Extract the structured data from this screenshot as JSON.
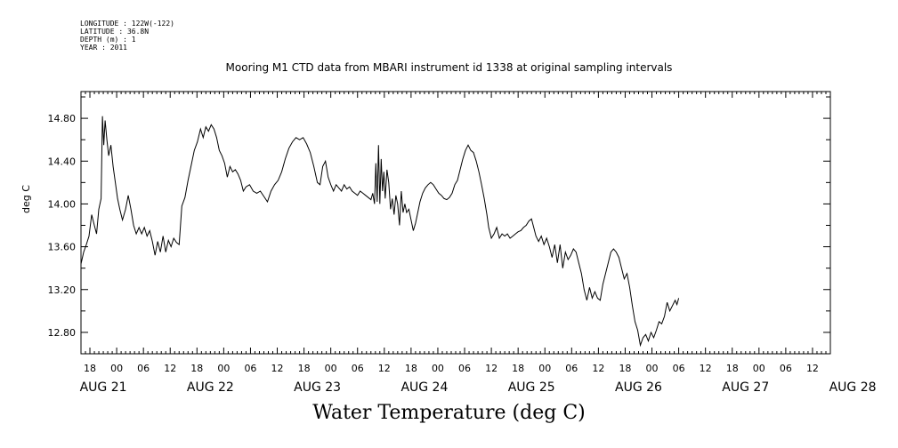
{
  "header": {
    "longitude": "LONGITUDE : 122W(-122)",
    "latitude": "LATITUDE : 36.8N",
    "depth": "DEPTH (m) : 1",
    "year": "YEAR : 2011"
  },
  "chart_data": {
    "type": "line",
    "title": "Mooring M1 CTD data from MBARI instrument id 1338 at original sampling intervals",
    "ylabel": "deg C",
    "xlabel": "Water Temperature (deg C)",
    "ylim": [
      12.6,
      15.05
    ],
    "xlim_hours": [
      -8,
      160
    ],
    "y_ticks": [
      12.8,
      13.2,
      13.6,
      14.0,
      14.4,
      14.8
    ],
    "y_tick_labels": [
      "12.80",
      "13.20",
      "13.60",
      "14.00",
      "14.40",
      "14.80"
    ],
    "x_hour_labels": [
      {
        "h": -6,
        "label": "18"
      },
      {
        "h": 0,
        "label": "00"
      },
      {
        "h": 6,
        "label": "06"
      },
      {
        "h": 12,
        "label": "12"
      },
      {
        "h": 18,
        "label": "18"
      },
      {
        "h": 24,
        "label": "00"
      },
      {
        "h": 30,
        "label": "06"
      },
      {
        "h": 36,
        "label": "12"
      },
      {
        "h": 42,
        "label": "18"
      },
      {
        "h": 48,
        "label": "00"
      },
      {
        "h": 54,
        "label": "06"
      },
      {
        "h": 60,
        "label": "12"
      },
      {
        "h": 66,
        "label": "18"
      },
      {
        "h": 72,
        "label": "00"
      },
      {
        "h": 78,
        "label": "06"
      },
      {
        "h": 84,
        "label": "12"
      },
      {
        "h": 90,
        "label": "18"
      },
      {
        "h": 96,
        "label": "00"
      },
      {
        "h": 102,
        "label": "06"
      },
      {
        "h": 108,
        "label": "12"
      },
      {
        "h": 114,
        "label": "18"
      },
      {
        "h": 120,
        "label": "00"
      },
      {
        "h": 126,
        "label": "06"
      },
      {
        "h": 132,
        "label": "12"
      },
      {
        "h": 138,
        "label": "18"
      },
      {
        "h": 144,
        "label": "00"
      },
      {
        "h": 150,
        "label": "06"
      },
      {
        "h": 156,
        "label": "12"
      }
    ],
    "x_day_labels": [
      {
        "h": -3,
        "label": "AUG 21"
      },
      {
        "h": 21,
        "label": "AUG 22"
      },
      {
        "h": 45,
        "label": "AUG 23"
      },
      {
        "h": 69,
        "label": "AUG 24"
      },
      {
        "h": 93,
        "label": "AUG 25"
      },
      {
        "h": 117,
        "label": "AUG 26"
      },
      {
        "h": 141,
        "label": "AUG 27"
      },
      {
        "h": 165,
        "label": "AUG 28"
      }
    ],
    "series": [
      {
        "points": [
          [
            -8,
            13.44
          ],
          [
            -7.4,
            13.55
          ],
          [
            -6.8,
            13.62
          ],
          [
            -6.2,
            13.7
          ],
          [
            -5.6,
            13.9
          ],
          [
            -5,
            13.8
          ],
          [
            -4.5,
            13.72
          ],
          [
            -4,
            13.95
          ],
          [
            -3.5,
            14.05
          ],
          [
            -3.2,
            14.82
          ],
          [
            -2.9,
            14.55
          ],
          [
            -2.6,
            14.78
          ],
          [
            -2.2,
            14.6
          ],
          [
            -1.8,
            14.45
          ],
          [
            -1.3,
            14.55
          ],
          [
            -0.8,
            14.35
          ],
          [
            -0.3,
            14.2
          ],
          [
            0.2,
            14.05
          ],
          [
            0.7,
            13.95
          ],
          [
            1.3,
            13.85
          ],
          [
            2,
            13.95
          ],
          [
            2.6,
            14.08
          ],
          [
            3.2,
            13.95
          ],
          [
            3.8,
            13.8
          ],
          [
            4.4,
            13.72
          ],
          [
            5,
            13.78
          ],
          [
            5.6,
            13.72
          ],
          [
            6.2,
            13.78
          ],
          [
            6.8,
            13.7
          ],
          [
            7.4,
            13.75
          ],
          [
            8,
            13.65
          ],
          [
            8.6,
            13.52
          ],
          [
            9.2,
            13.65
          ],
          [
            9.8,
            13.55
          ],
          [
            10.4,
            13.7
          ],
          [
            11,
            13.55
          ],
          [
            11.6,
            13.66
          ],
          [
            12.2,
            13.6
          ],
          [
            12.8,
            13.68
          ],
          [
            13.4,
            13.64
          ],
          [
            14,
            13.62
          ],
          [
            14.6,
            13.98
          ],
          [
            15.3,
            14.06
          ],
          [
            16,
            14.22
          ],
          [
            16.7,
            14.36
          ],
          [
            17.4,
            14.5
          ],
          [
            18.1,
            14.58
          ],
          [
            18.8,
            14.7
          ],
          [
            19.4,
            14.62
          ],
          [
            20,
            14.72
          ],
          [
            20.6,
            14.68
          ],
          [
            21.2,
            14.74
          ],
          [
            21.8,
            14.7
          ],
          [
            22.4,
            14.62
          ],
          [
            23,
            14.5
          ],
          [
            23.6,
            14.45
          ],
          [
            24.2,
            14.38
          ],
          [
            24.8,
            14.25
          ],
          [
            25.4,
            14.35
          ],
          [
            26,
            14.3
          ],
          [
            26.6,
            14.32
          ],
          [
            27.2,
            14.28
          ],
          [
            27.8,
            14.22
          ],
          [
            28.4,
            14.12
          ],
          [
            29,
            14.16
          ],
          [
            29.8,
            14.18
          ],
          [
            30.6,
            14.12
          ],
          [
            31.4,
            14.1
          ],
          [
            32.2,
            14.12
          ],
          [
            33,
            14.07
          ],
          [
            33.8,
            14.02
          ],
          [
            34.6,
            14.12
          ],
          [
            35.4,
            14.18
          ],
          [
            36.2,
            14.22
          ],
          [
            37,
            14.3
          ],
          [
            37.8,
            14.42
          ],
          [
            38.6,
            14.52
          ],
          [
            39.4,
            14.58
          ],
          [
            40.2,
            14.62
          ],
          [
            41,
            14.6
          ],
          [
            41.8,
            14.62
          ],
          [
            42.6,
            14.56
          ],
          [
            43.4,
            14.48
          ],
          [
            44.2,
            14.35
          ],
          [
            45,
            14.2
          ],
          [
            45.6,
            14.18
          ],
          [
            46.2,
            14.35
          ],
          [
            46.8,
            14.4
          ],
          [
            47.4,
            14.25
          ],
          [
            48,
            14.18
          ],
          [
            48.6,
            14.12
          ],
          [
            49.2,
            14.18
          ],
          [
            49.8,
            14.15
          ],
          [
            50.4,
            14.12
          ],
          [
            51,
            14.18
          ],
          [
            51.6,
            14.14
          ],
          [
            52.2,
            14.16
          ],
          [
            52.8,
            14.12
          ],
          [
            53.4,
            14.1
          ],
          [
            54,
            14.08
          ],
          [
            54.6,
            14.12
          ],
          [
            55.2,
            14.1
          ],
          [
            55.8,
            14.08
          ],
          [
            56.4,
            14.06
          ],
          [
            57,
            14.04
          ],
          [
            57.4,
            14.1
          ],
          [
            57.8,
            14.0
          ],
          [
            58.1,
            14.38
          ],
          [
            58.4,
            14.02
          ],
          [
            58.7,
            14.55
          ],
          [
            59,
            14.0
          ],
          [
            59.3,
            14.42
          ],
          [
            59.6,
            14.12
          ],
          [
            59.9,
            14.3
          ],
          [
            60.2,
            14.05
          ],
          [
            60.6,
            14.32
          ],
          [
            61,
            14.2
          ],
          [
            61.4,
            13.95
          ],
          [
            61.8,
            14.05
          ],
          [
            62.2,
            13.9
          ],
          [
            62.6,
            14.08
          ],
          [
            63,
            14.0
          ],
          [
            63.4,
            13.8
          ],
          [
            63.8,
            14.12
          ],
          [
            64.2,
            13.92
          ],
          [
            64.6,
            14.0
          ],
          [
            65,
            13.92
          ],
          [
            65.5,
            13.95
          ],
          [
            66,
            13.85
          ],
          [
            66.5,
            13.75
          ],
          [
            67,
            13.82
          ],
          [
            67.5,
            13.92
          ],
          [
            68,
            14.02
          ],
          [
            68.6,
            14.1
          ],
          [
            69.2,
            14.15
          ],
          [
            69.8,
            14.18
          ],
          [
            70.4,
            14.2
          ],
          [
            71,
            14.18
          ],
          [
            71.6,
            14.14
          ],
          [
            72.2,
            14.1
          ],
          [
            72.8,
            14.08
          ],
          [
            73.4,
            14.05
          ],
          [
            74,
            14.04
          ],
          [
            74.6,
            14.06
          ],
          [
            75.2,
            14.1
          ],
          [
            75.8,
            14.18
          ],
          [
            76.4,
            14.22
          ],
          [
            77,
            14.32
          ],
          [
            77.6,
            14.42
          ],
          [
            78.2,
            14.5
          ],
          [
            78.8,
            14.55
          ],
          [
            79.4,
            14.5
          ],
          [
            80,
            14.48
          ],
          [
            80.6,
            14.4
          ],
          [
            81.2,
            14.3
          ],
          [
            81.8,
            14.18
          ],
          [
            82.4,
            14.05
          ],
          [
            83,
            13.9
          ],
          [
            83.4,
            13.78
          ],
          [
            84,
            13.68
          ],
          [
            84.6,
            13.72
          ],
          [
            85.2,
            13.78
          ],
          [
            85.8,
            13.68
          ],
          [
            86.4,
            13.72
          ],
          [
            87,
            13.7
          ],
          [
            87.6,
            13.72
          ],
          [
            88.2,
            13.68
          ],
          [
            88.8,
            13.7
          ],
          [
            89.4,
            13.72
          ],
          [
            90,
            13.74
          ],
          [
            90.6,
            13.75
          ],
          [
            91.2,
            13.78
          ],
          [
            91.8,
            13.8
          ],
          [
            92.4,
            13.84
          ],
          [
            93,
            13.86
          ],
          [
            93.5,
            13.78
          ],
          [
            94,
            13.7
          ],
          [
            94.6,
            13.65
          ],
          [
            95.2,
            13.7
          ],
          [
            95.8,
            13.62
          ],
          [
            96.4,
            13.68
          ],
          [
            97,
            13.6
          ],
          [
            97.6,
            13.5
          ],
          [
            98.2,
            13.62
          ],
          [
            98.8,
            13.45
          ],
          [
            99.4,
            13.62
          ],
          [
            100,
            13.4
          ],
          [
            100.6,
            13.55
          ],
          [
            101.2,
            13.48
          ],
          [
            101.8,
            13.52
          ],
          [
            102.4,
            13.58
          ],
          [
            103,
            13.55
          ],
          [
            103.6,
            13.45
          ],
          [
            104.2,
            13.35
          ],
          [
            104.8,
            13.2
          ],
          [
            105.4,
            13.1
          ],
          [
            106,
            13.22
          ],
          [
            106.6,
            13.12
          ],
          [
            107.2,
            13.18
          ],
          [
            107.8,
            13.12
          ],
          [
            108.4,
            13.1
          ],
          [
            109,
            13.25
          ],
          [
            109.6,
            13.35
          ],
          [
            110.2,
            13.45
          ],
          [
            110.8,
            13.55
          ],
          [
            111.4,
            13.58
          ],
          [
            112,
            13.55
          ],
          [
            112.6,
            13.5
          ],
          [
            113.2,
            13.4
          ],
          [
            113.8,
            13.3
          ],
          [
            114.4,
            13.35
          ],
          [
            115,
            13.22
          ],
          [
            115.6,
            13.05
          ],
          [
            116.2,
            12.9
          ],
          [
            116.8,
            12.82
          ],
          [
            117.4,
            12.68
          ],
          [
            118,
            12.75
          ],
          [
            118.6,
            12.78
          ],
          [
            119.2,
            12.72
          ],
          [
            119.8,
            12.8
          ],
          [
            120.4,
            12.75
          ],
          [
            121,
            12.82
          ],
          [
            121.6,
            12.9
          ],
          [
            122.2,
            12.88
          ],
          [
            122.8,
            12.95
          ],
          [
            123.4,
            13.08
          ],
          [
            124,
            13.0
          ],
          [
            124.6,
            13.05
          ],
          [
            125.2,
            13.1
          ],
          [
            125.6,
            13.06
          ],
          [
            126,
            13.12
          ]
        ]
      }
    ]
  }
}
